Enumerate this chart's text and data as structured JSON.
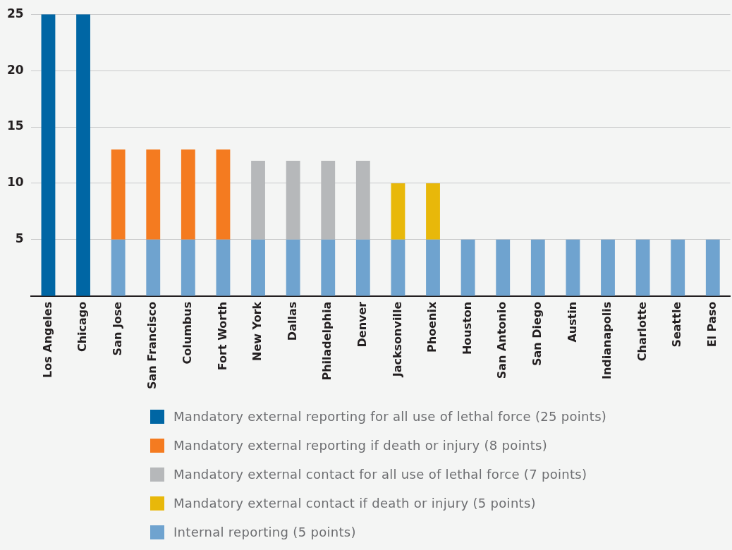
{
  "chart_data": {
    "type": "bar",
    "stacked": true,
    "categories": [
      "Los Angeles",
      "Chicago",
      "San Jose",
      "San Francisco",
      "Columbus",
      "Fort Worth",
      "New York",
      "Dallas",
      "Philadelphia",
      "Denver",
      "Jacksonville",
      "Phoenix",
      "Houston",
      "San Antonio",
      "San Diego",
      "Austin",
      "Indianapolis",
      "Charlotte",
      "Seattle",
      "El Paso"
    ],
    "series": [
      {
        "name": "Internal reporting (5 points)",
        "color": "#6fa3cf",
        "values": [
          null,
          null,
          5,
          5,
          5,
          5,
          5,
          5,
          5,
          5,
          5,
          5,
          5,
          5,
          5,
          5,
          5,
          5,
          5,
          5
        ]
      },
      {
        "name": "Mandatory external reporting for all use of lethal force (25 points)",
        "color": "#0066a4",
        "values": [
          25,
          25,
          null,
          null,
          null,
          null,
          null,
          null,
          null,
          null,
          null,
          null,
          null,
          null,
          null,
          null,
          null,
          null,
          null,
          null
        ]
      },
      {
        "name": "Mandatory external reporting if death or injury (8 points)",
        "color": "#f47b20",
        "values": [
          null,
          null,
          8,
          8,
          8,
          8,
          null,
          null,
          null,
          null,
          null,
          null,
          null,
          null,
          null,
          null,
          null,
          null,
          null,
          null
        ]
      },
      {
        "name": "Mandatory external contact for all use of lethal force (7 points)",
        "color": "#b6b8ba",
        "values": [
          null,
          null,
          null,
          null,
          null,
          null,
          7,
          7,
          7,
          7,
          null,
          null,
          null,
          null,
          null,
          null,
          null,
          null,
          null,
          null
        ]
      },
      {
        "name": "Mandatory external contact if death or injury (5 points)",
        "color": "#e8b80a",
        "values": [
          null,
          null,
          null,
          null,
          null,
          null,
          null,
          null,
          null,
          null,
          5,
          5,
          null,
          null,
          null,
          null,
          null,
          null,
          null,
          null
        ]
      }
    ],
    "ylim": [
      0,
      25
    ],
    "yticks": [
      5,
      10,
      15,
      20,
      25
    ],
    "grid": "y",
    "legend": "bottom"
  }
}
